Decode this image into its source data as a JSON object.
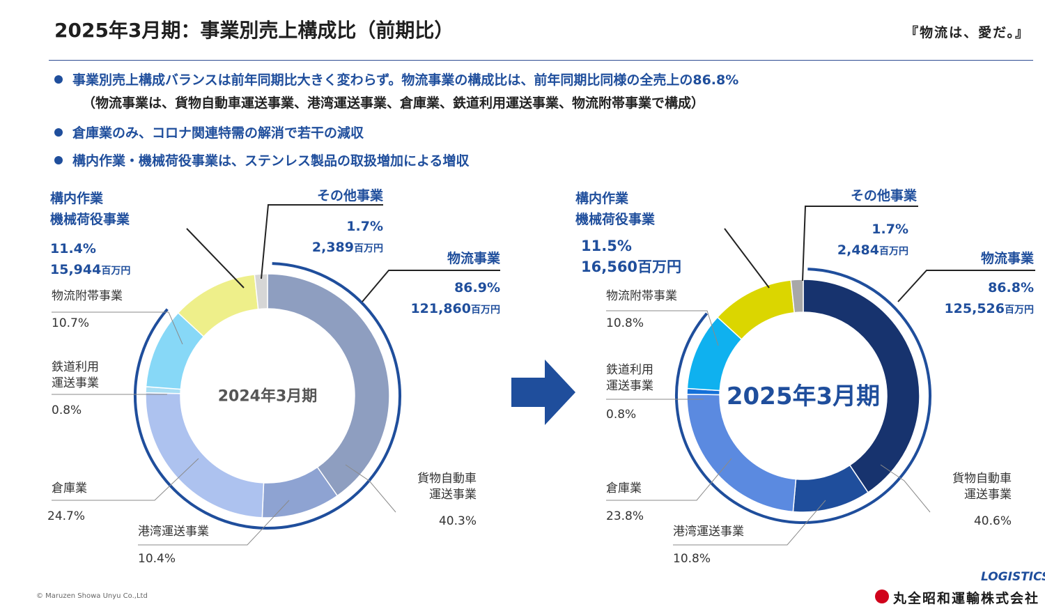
{
  "header": {
    "title": "2025年3月期：事業別売上構成比（前期比）",
    "tagline": "『物流は、愛だ。』"
  },
  "bullets": [
    "事業別売上構成バランスは前年同期比大きく変わらず。物流事業の構成比は、前年同期比同様の全売上の86.8%",
    "倉庫業のみ、コロナ関連特需の解消で若干の減収",
    "構内作業・機械荷役事業は、ステンレス製品の取扱増加による増収"
  ],
  "bullet_note": "（物流事業は、貨物自動車運送事業、港湾運送事業、倉庫業、鉄道利用運送事業、物流附帯事業で構成）",
  "footer": {
    "copyright": "© Maruzen Showa Unyu Co.,Ltd",
    "logo": "LOGISTICS",
    "company": "丸全昭和運輸株式会社"
  },
  "chart_data": [
    {
      "type": "pie",
      "center_label": "2024年3月期",
      "slices": [
        {
          "name": "貨物自動車運送事業",
          "label_lines": [
            "貨物自動車",
            "運送事業"
          ],
          "pct_text": "40.3%",
          "value": 40.3,
          "color": "#8e9ec0"
        },
        {
          "name": "港湾運送事業",
          "label_lines": [
            "港湾運送事業"
          ],
          "pct_text": "10.4%",
          "value": 10.4,
          "color": "#8ea3d2"
        },
        {
          "name": "倉庫業",
          "label_lines": [
            "倉庫業"
          ],
          "pct_text": "24.7%",
          "value": 24.7,
          "color": "#adc2ef"
        },
        {
          "name": "鉄道利用運送事業",
          "label_lines": [
            "鉄道利用",
            "運送事業"
          ],
          "pct_text": "0.8%",
          "value": 0.8,
          "color": "#a9def4"
        },
        {
          "name": "物流附帯事業",
          "label_lines": [
            "物流附帯事業"
          ],
          "pct_text": "10.7%",
          "value": 10.7,
          "color": "#87d8f7"
        },
        {
          "name": "構内作業機械荷役事業",
          "label_lines": [
            "構内作業",
            "機械荷役事業"
          ],
          "pct_text": "11.4%",
          "value": 11.4,
          "amount": "15,944",
          "color": "#eeef8a"
        },
        {
          "name": "その他事業",
          "label_lines": [
            "その他事業"
          ],
          "pct_text": "1.7%",
          "value": 1.7,
          "amount": "2,389",
          "color": "#d6d6d6"
        }
      ],
      "logistics_total": {
        "label": "物流事業",
        "pct_text": "86.9%",
        "amount": "121,860"
      },
      "unit": "百万円"
    },
    {
      "type": "pie",
      "center_label": "2025年3月期",
      "slices": [
        {
          "name": "貨物自動車運送事業",
          "label_lines": [
            "貨物自動車",
            "運送事業"
          ],
          "pct_text": "40.6%",
          "value": 40.6,
          "color": "#17336e"
        },
        {
          "name": "港湾運送事業",
          "label_lines": [
            "港湾運送事業"
          ],
          "pct_text": "10.8%",
          "value": 10.8,
          "color": "#1f4e9c"
        },
        {
          "name": "倉庫業",
          "label_lines": [
            "倉庫業"
          ],
          "pct_text": "23.8%",
          "value": 23.8,
          "color": "#5b8ae0"
        },
        {
          "name": "鉄道利用運送事業",
          "label_lines": [
            "鉄道利用",
            "運送事業"
          ],
          "pct_text": "0.8%",
          "value": 0.8,
          "color": "#1470d8"
        },
        {
          "name": "物流附帯事業",
          "label_lines": [
            "物流附帯事業"
          ],
          "pct_text": "10.8%",
          "value": 10.8,
          "color": "#0fb1ef"
        },
        {
          "name": "構内作業機械荷役事業",
          "label_lines": [
            "構内作業",
            "機械荷役事業"
          ],
          "pct_text": "11.5%",
          "value": 11.5,
          "amount": "16,560",
          "color": "#dbd600"
        },
        {
          "name": "その他事業",
          "label_lines": [
            "その他事業"
          ],
          "pct_text": "1.7%",
          "value": 1.7,
          "amount": "2,484",
          "color": "#a8a8a8"
        }
      ],
      "logistics_total": {
        "label": "物流事業",
        "pct_text": "86.8%",
        "amount": "125,526"
      },
      "unit": "百万円"
    }
  ],
  "colors": {
    "accent": "#1f4e9c",
    "arrow": "#1f4e9c"
  }
}
